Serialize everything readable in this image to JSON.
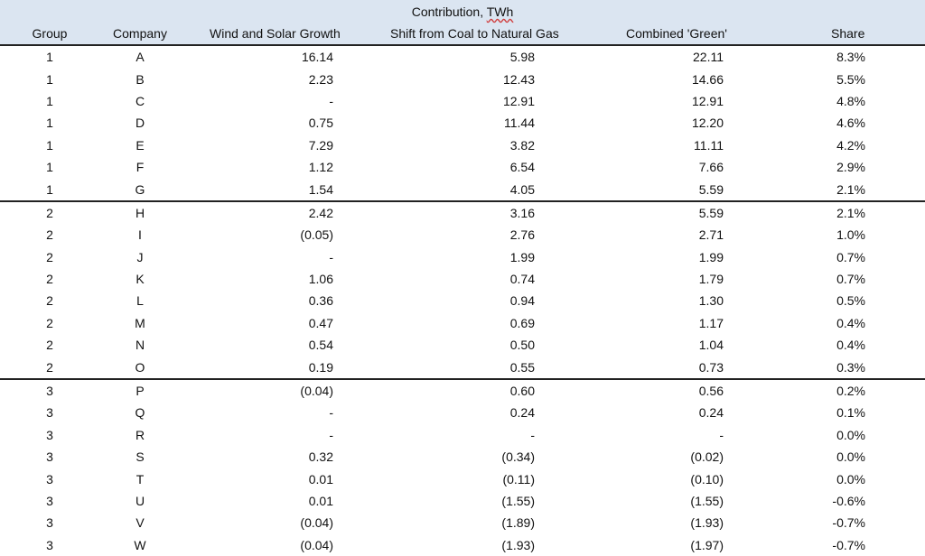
{
  "table": {
    "super_header": "Contribution, ",
    "super_header_unit": "TWh",
    "columns": {
      "group": "Group",
      "company": "Company",
      "wind": "Wind and Solar Growth",
      "shift": "Shift from Coal to Natural Gas",
      "green": "Combined 'Green'",
      "share": "Share"
    },
    "groups": [
      {
        "rows": [
          {
            "group": "1",
            "company": "A",
            "wind": "16.14",
            "shift": "5.98",
            "green": "22.11",
            "share": "8.3%"
          },
          {
            "group": "1",
            "company": "B",
            "wind": "2.23",
            "shift": "12.43",
            "green": "14.66",
            "share": "5.5%"
          },
          {
            "group": "1",
            "company": "C",
            "wind": "-",
            "shift": "12.91",
            "green": "12.91",
            "share": "4.8%"
          },
          {
            "group": "1",
            "company": "D",
            "wind": "0.75",
            "shift": "11.44",
            "green": "12.20",
            "share": "4.6%"
          },
          {
            "group": "1",
            "company": "E",
            "wind": "7.29",
            "shift": "3.82",
            "green": "11.11",
            "share": "4.2%"
          },
          {
            "group": "1",
            "company": "F",
            "wind": "1.12",
            "shift": "6.54",
            "green": "7.66",
            "share": "2.9%"
          },
          {
            "group": "1",
            "company": "G",
            "wind": "1.54",
            "shift": "4.05",
            "green": "5.59",
            "share": "2.1%"
          }
        ]
      },
      {
        "rows": [
          {
            "group": "2",
            "company": "H",
            "wind": "2.42",
            "shift": "3.16",
            "green": "5.59",
            "share": "2.1%"
          },
          {
            "group": "2",
            "company": "I",
            "wind": "(0.05)",
            "shift": "2.76",
            "green": "2.71",
            "share": "1.0%"
          },
          {
            "group": "2",
            "company": "J",
            "wind": "-",
            "shift": "1.99",
            "green": "1.99",
            "share": "0.7%"
          },
          {
            "group": "2",
            "company": "K",
            "wind": "1.06",
            "shift": "0.74",
            "green": "1.79",
            "share": "0.7%"
          },
          {
            "group": "2",
            "company": "L",
            "wind": "0.36",
            "shift": "0.94",
            "green": "1.30",
            "share": "0.5%"
          },
          {
            "group": "2",
            "company": "M",
            "wind": "0.47",
            "shift": "0.69",
            "green": "1.17",
            "share": "0.4%"
          },
          {
            "group": "2",
            "company": "N",
            "wind": "0.54",
            "shift": "0.50",
            "green": "1.04",
            "share": "0.4%"
          },
          {
            "group": "2",
            "company": "O",
            "wind": "0.19",
            "shift": "0.55",
            "green": "0.73",
            "share": "0.3%"
          }
        ]
      },
      {
        "rows": [
          {
            "group": "3",
            "company": "P",
            "wind": "(0.04)",
            "shift": "0.60",
            "green": "0.56",
            "share": "0.2%"
          },
          {
            "group": "3",
            "company": "Q",
            "wind": "-",
            "shift": "0.24",
            "green": "0.24",
            "share": "0.1%"
          },
          {
            "group": "3",
            "company": "R",
            "wind": "-",
            "shift": "-",
            "green": "-",
            "share": "0.0%"
          },
          {
            "group": "3",
            "company": "S",
            "wind": "0.32",
            "shift": "(0.34)",
            "green": "(0.02)",
            "share": "0.0%"
          },
          {
            "group": "3",
            "company": "T",
            "wind": "0.01",
            "shift": "(0.11)",
            "green": "(0.10)",
            "share": "0.0%"
          },
          {
            "group": "3",
            "company": "U",
            "wind": "0.01",
            "shift": "(1.55)",
            "green": "(1.55)",
            "share": "-0.6%"
          },
          {
            "group": "3",
            "company": "V",
            "wind": "(0.04)",
            "shift": "(1.89)",
            "green": "(1.93)",
            "share": "-0.7%"
          },
          {
            "group": "3",
            "company": "W",
            "wind": "(0.04)",
            "shift": "(1.93)",
            "green": "(1.97)",
            "share": "-0.7%"
          }
        ]
      }
    ]
  }
}
